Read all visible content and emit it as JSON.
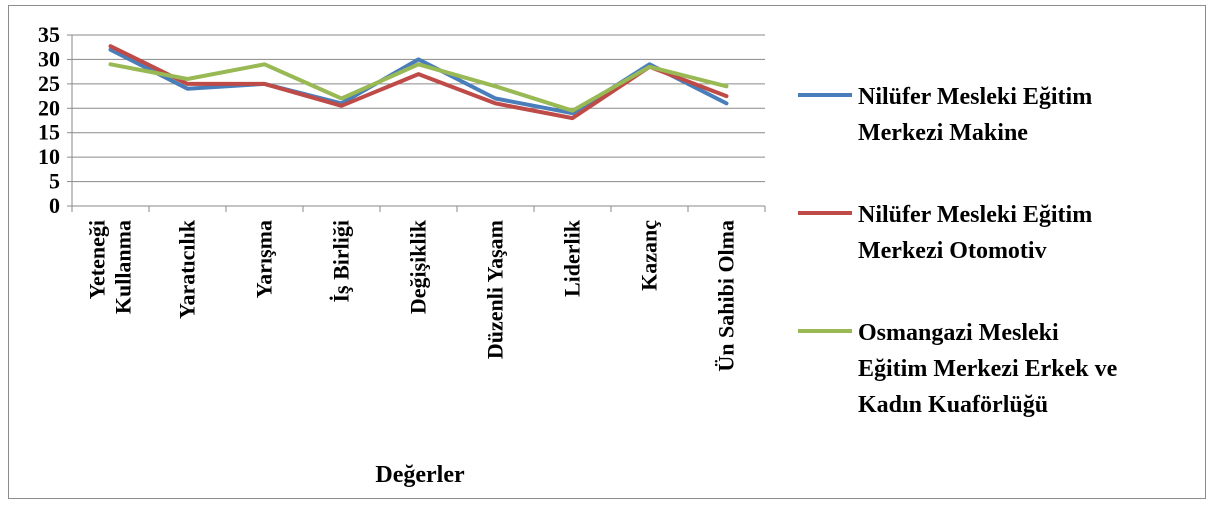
{
  "chart_data": {
    "type": "line",
    "title": "",
    "xlabel": "Değerler",
    "ylabel": "",
    "ylim": [
      0,
      35
    ],
    "yticks": [
      0,
      5,
      10,
      15,
      20,
      25,
      30,
      35
    ],
    "grid": true,
    "legend_position": "right",
    "categories": [
      [
        "Yeteneği",
        "Kullanma"
      ],
      [
        "Yaratıcılık"
      ],
      [
        "Yarışma"
      ],
      [
        "İş Birliği"
      ],
      [
        "Değişiklik"
      ],
      [
        "Düzenli Yaşam"
      ],
      [
        "Liderlik"
      ],
      [
        "Kazanç"
      ],
      [
        "Ün Sahibi Olma"
      ]
    ],
    "series": [
      {
        "name": [
          "Nilüfer Mesleki Eğitim",
          "Merkezi Makine"
        ],
        "color": "#4a7ebb",
        "values": [
          32,
          24,
          25,
          21,
          30,
          22,
          19,
          29,
          21
        ]
      },
      {
        "name": [
          "Nilüfer Mesleki Eğitim",
          "Merkezi Otomotiv"
        ],
        "color": "#be4b48",
        "values": [
          32.7,
          25,
          25,
          20.5,
          27,
          21,
          18,
          28.5,
          22.5
        ]
      },
      {
        "name": [
          "Osmangazi Mesleki",
          "Eğitim Merkezi Erkek ve",
          "Kadın Kuaförlüğü"
        ],
        "color": "#98b954",
        "values": [
          29,
          26,
          29,
          22,
          29,
          24.5,
          19.5,
          28.5,
          24.5
        ]
      }
    ]
  }
}
